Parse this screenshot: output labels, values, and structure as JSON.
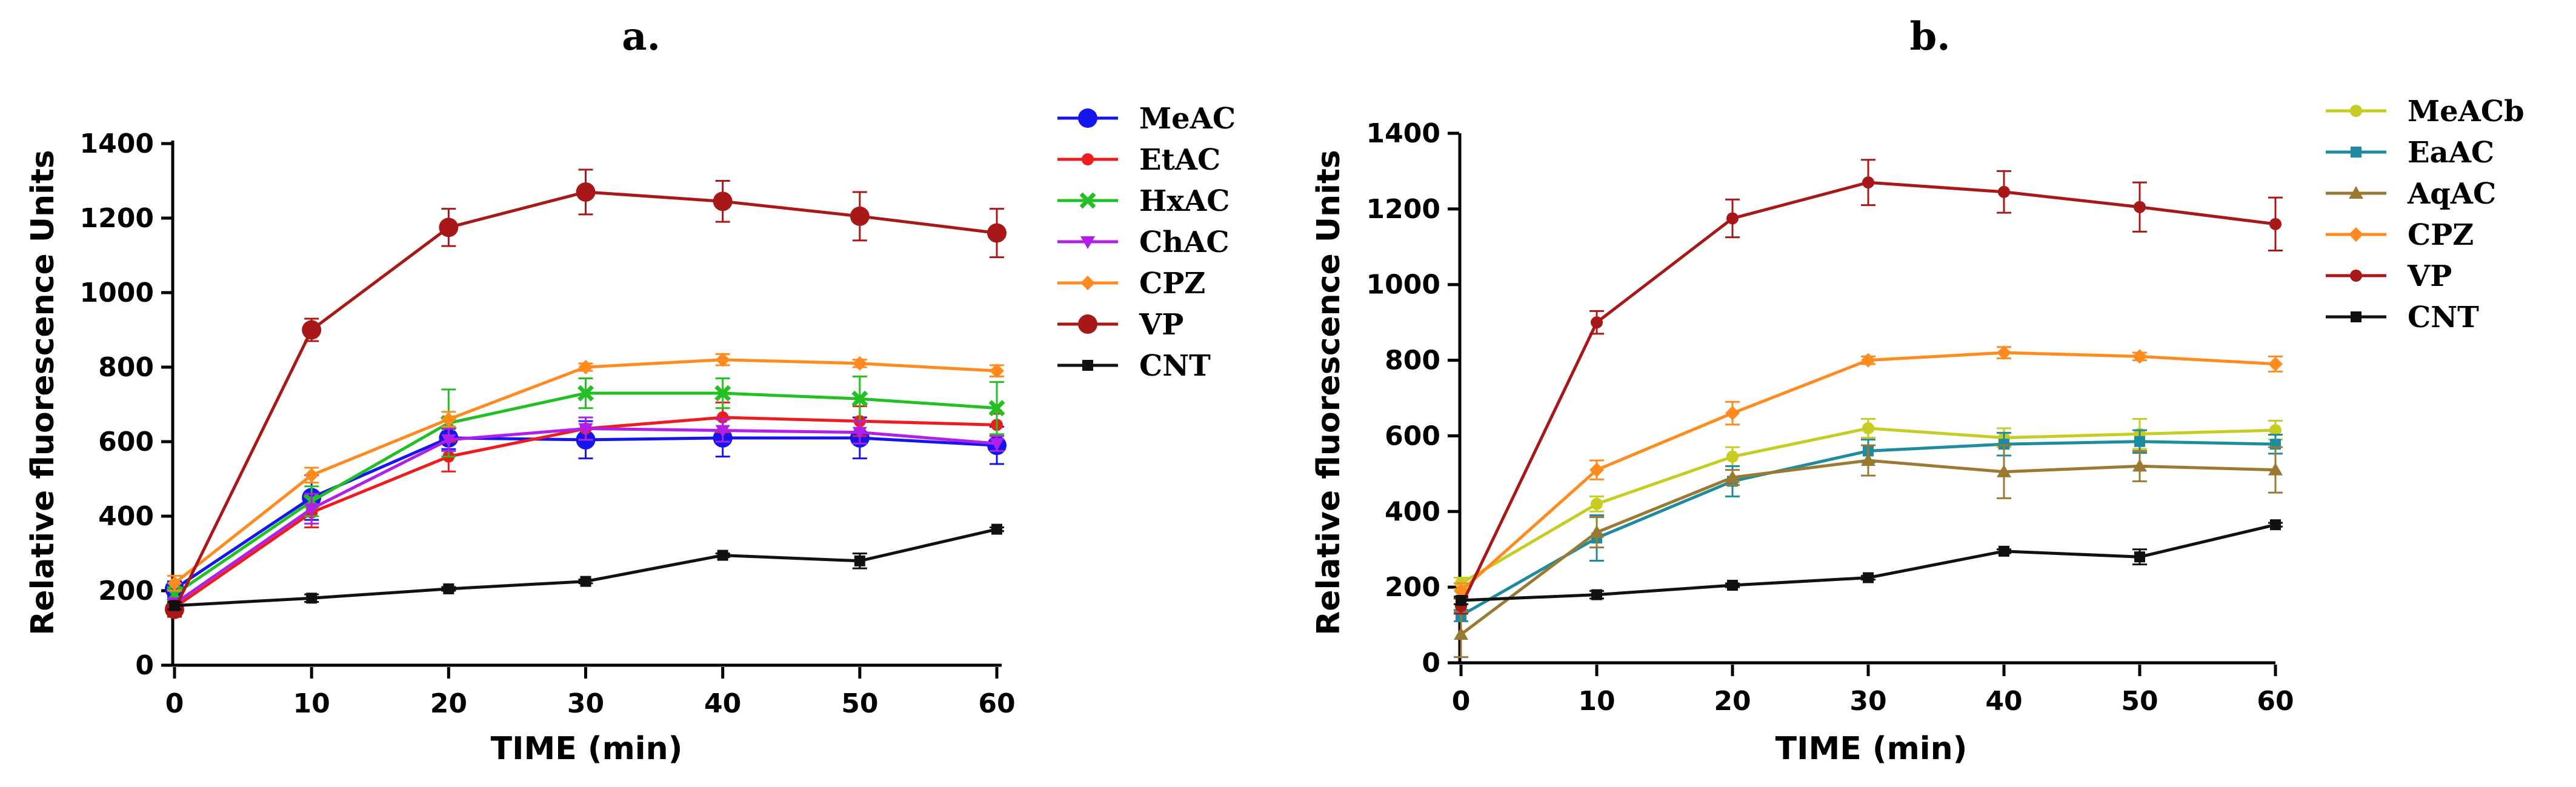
{
  "chart_data": [
    {
      "type": "line",
      "panel": "a.",
      "xlabel": "TIME (min)",
      "ylabel": "Relative fluorescence Units",
      "xlim": [
        0,
        60
      ],
      "ylim": [
        0,
        1400
      ],
      "xticks": [
        "0",
        "10",
        "20",
        "30",
        "40",
        "50",
        "60"
      ],
      "yticks": [
        "0",
        "200",
        "400",
        "600",
        "800",
        "1000",
        "1200",
        "1400"
      ],
      "x": [
        0,
        10,
        20,
        30,
        40,
        50,
        60
      ],
      "legend_position": "right",
      "series": [
        {
          "name": "MeAC",
          "color": "#1515ee",
          "marker": "circle-large",
          "values": [
            205,
            450,
            610,
            605,
            610,
            610,
            590
          ],
          "errors": [
            20,
            60,
            30,
            50,
            50,
            55,
            50
          ]
        },
        {
          "name": "EtAC",
          "color": "#ee1c1c",
          "marker": "circle-small",
          "values": [
            155,
            410,
            560,
            635,
            665,
            655,
            645
          ],
          "errors": [
            15,
            40,
            40,
            30,
            40,
            40,
            30
          ]
        },
        {
          "name": "HxAC",
          "color": "#22c022",
          "marker": "cross",
          "values": [
            190,
            440,
            650,
            730,
            730,
            715,
            690
          ],
          "errors": [
            20,
            40,
            90,
            40,
            40,
            60,
            70
          ]
        },
        {
          "name": "ChAC",
          "color": "#b020e8",
          "marker": "triangle-down",
          "values": [
            165,
            420,
            605,
            635,
            630,
            625,
            595
          ],
          "errors": [
            15,
            40,
            30,
            30,
            30,
            30,
            20
          ]
        },
        {
          "name": "CPZ",
          "color": "#ff8a1e",
          "marker": "diamond",
          "values": [
            220,
            510,
            660,
            800,
            820,
            810,
            790
          ],
          "errors": [
            20,
            20,
            20,
            10,
            15,
            10,
            15
          ]
        },
        {
          "name": "VP",
          "color": "#a81818",
          "marker": "circle-large",
          "values": [
            150,
            900,
            1175,
            1270,
            1245,
            1205,
            1160
          ],
          "errors": [
            20,
            30,
            50,
            60,
            55,
            65,
            65
          ]
        },
        {
          "name": "CNT",
          "color": "#111111",
          "marker": "square",
          "values": [
            160,
            180,
            205,
            225,
            295,
            280,
            365
          ],
          "errors": [
            10,
            10,
            5,
            5,
            5,
            20,
            5
          ]
        }
      ]
    },
    {
      "type": "line",
      "panel": "b.",
      "xlabel": "TIME (min)",
      "ylabel": "Relative fluorescence Units",
      "xlim": [
        0,
        60
      ],
      "ylim": [
        0,
        1400
      ],
      "xticks": [
        "0",
        "10",
        "20",
        "30",
        "40",
        "50",
        "60"
      ],
      "yticks": [
        "0",
        "200",
        "400",
        "600",
        "800",
        "1000",
        "1200",
        "1400"
      ],
      "x": [
        0,
        10,
        20,
        30,
        40,
        50,
        60
      ],
      "legend_position": "right",
      "series": [
        {
          "name": "MeACb",
          "color": "#c6cc22",
          "marker": "circle-small",
          "values": [
            210,
            420,
            545,
            620,
            595,
            605,
            615
          ],
          "errors": [
            15,
            20,
            25,
            25,
            25,
            40,
            25
          ]
        },
        {
          "name": "EaAC",
          "color": "#1e8c9e",
          "marker": "square",
          "values": [
            125,
            330,
            480,
            560,
            578,
            585,
            578
          ],
          "errors": [
            15,
            60,
            40,
            30,
            30,
            30,
            25
          ]
        },
        {
          "name": "AqAC",
          "color": "#9a7a32",
          "marker": "triangle-up",
          "values": [
            75,
            345,
            490,
            535,
            505,
            520,
            510
          ],
          "errors": [
            60,
            40,
            20,
            40,
            70,
            40,
            60
          ]
        },
        {
          "name": "CPZ",
          "color": "#ff8a1e",
          "marker": "diamond",
          "values": [
            190,
            510,
            660,
            800,
            820,
            810,
            790
          ],
          "errors": [
            20,
            25,
            30,
            10,
            15,
            10,
            20
          ]
        },
        {
          "name": "VP",
          "color": "#a81818",
          "marker": "circle-small",
          "values": [
            150,
            900,
            1175,
            1270,
            1245,
            1205,
            1160
          ],
          "errors": [
            20,
            30,
            50,
            60,
            55,
            65,
            70
          ]
        },
        {
          "name": "CNT",
          "color": "#111111",
          "marker": "square",
          "values": [
            165,
            180,
            205,
            225,
            295,
            280,
            365
          ],
          "errors": [
            10,
            10,
            5,
            5,
            5,
            20,
            5
          ]
        }
      ]
    }
  ]
}
